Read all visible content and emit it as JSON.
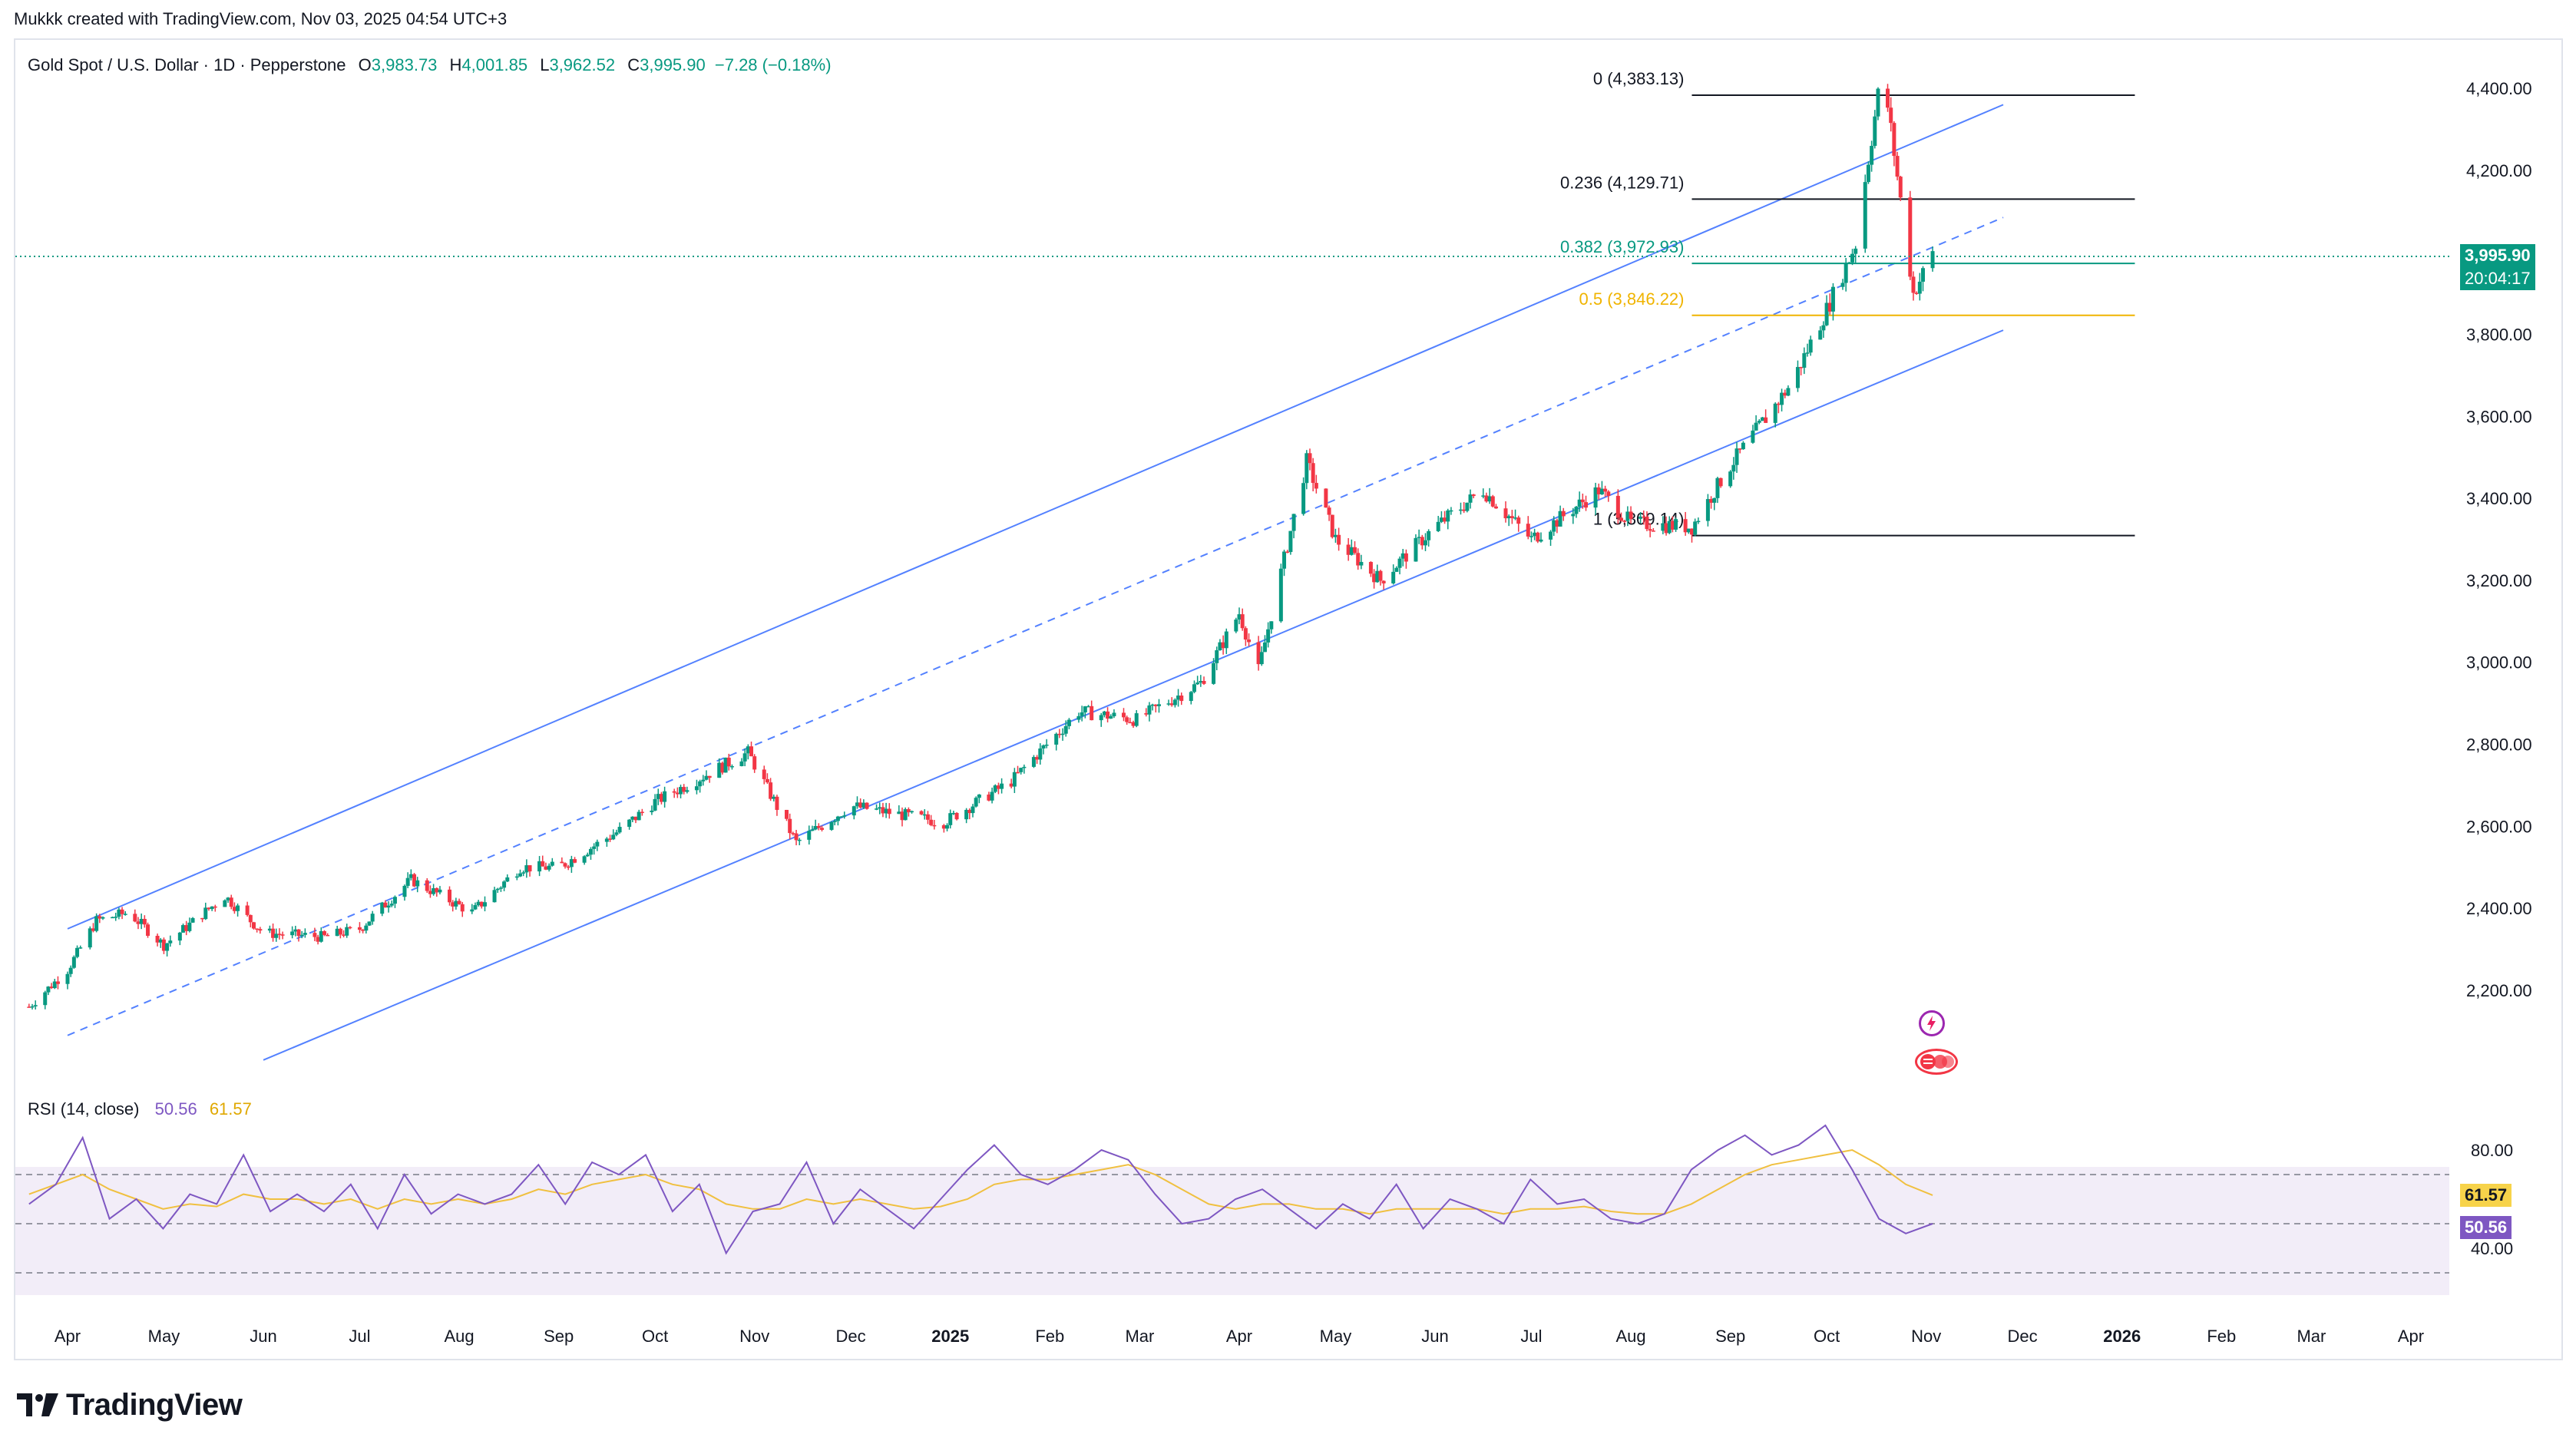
{
  "header": {
    "credit": "Mukkk created with TradingView.com, Nov 03, 2025 04:54 UTC+3"
  },
  "symbol": {
    "name": "Gold Spot / U.S. Dollar · 1D · Pepperstone",
    "open_label": "O",
    "open": "3,983.73",
    "high_label": "H",
    "high": "4,001.85",
    "low_label": "L",
    "low": "3,962.52",
    "close_label": "C",
    "close": "3,995.90",
    "change": "−7.28 (−0.18%)"
  },
  "price_tag": {
    "price": "3,995.90",
    "countdown": "20:04:17",
    "color": "#089981"
  },
  "rsi": {
    "title": "RSI (14, close)",
    "value": "50.56",
    "ma_value": "61.57",
    "tag_rsi": "50.56",
    "tag_ma": "61.57",
    "rsi_color": "#7e57c2",
    "ma_color": "#f0c040"
  },
  "fib_labels": [
    {
      "text": "0 (4,383.13)",
      "level": 4383.13,
      "color": "#131722"
    },
    {
      "text": "0.236 (4,129.71)",
      "level": 4129.71,
      "color": "#131722"
    },
    {
      "text": "0.382 (3,972.93)",
      "level": 3972.93,
      "color": "#089981"
    },
    {
      "text": "0.5 (3,846.22)",
      "level": 3846.22,
      "color": "#f0b400"
    },
    {
      "text": "1 (3,309.14)",
      "level": 3309.14,
      "color": "#131722"
    }
  ],
  "logo": {
    "text": "TradingView"
  },
  "chart_data": {
    "type": "line",
    "title": "Gold Spot / U.S. Dollar · 1D · Pepperstone",
    "y_ticks": [
      "4,400.00",
      "4,200.00",
      "4,000.00",
      "3,800.00",
      "3,600.00",
      "3,400.00",
      "3,200.00",
      "3,000.00",
      "2,800.00",
      "2,600.00",
      "2,400.00",
      "2,200.00"
    ],
    "y_tick_values": [
      4400,
      4200,
      4000,
      3800,
      3600,
      3400,
      3200,
      3000,
      2800,
      2600,
      2400,
      2200
    ],
    "ylim": [
      2050,
      4450
    ],
    "x_ticks": [
      "Apr",
      "May",
      "Jun",
      "Jul",
      "Aug",
      "Sep",
      "Oct",
      "Nov",
      "Dec",
      "2025",
      "Feb",
      "Mar",
      "Apr",
      "May",
      "Jun",
      "Jul",
      "Aug",
      "Sep",
      "Oct",
      "Nov",
      "Dec",
      "2026",
      "Feb",
      "Mar",
      "Apr"
    ],
    "x_tick_dates": [
      "2024-04-01",
      "2024-05-01",
      "2024-06-01",
      "2024-07-01",
      "2024-08-01",
      "2024-09-01",
      "2024-10-01",
      "2024-11-01",
      "2024-12-01",
      "2025-01-01",
      "2025-02-01",
      "2025-03-01",
      "2025-04-01",
      "2025-05-01",
      "2025-06-01",
      "2025-07-01",
      "2025-08-01",
      "2025-09-01",
      "2025-10-01",
      "2025-11-01",
      "2025-12-01",
      "2026-01-01",
      "2026-02-01",
      "2026-03-01",
      "2026-04-01"
    ],
    "series": [
      {
        "values_date": [
          "2024-03-20",
          "2024-04-01",
          "2024-04-10",
          "2024-04-20",
          "2024-05-01",
          "2024-05-20",
          "2024-06-01",
          "2024-06-20",
          "2024-07-01",
          "2024-07-17",
          "2024-08-05",
          "2024-08-20",
          "2024-09-01",
          "2024-09-20",
          "2024-10-01",
          "2024-10-30",
          "2024-11-14",
          "2024-12-01",
          "2024-12-30",
          "2025-01-20",
          "2025-02-10",
          "2025-02-28",
          "2025-03-20",
          "2025-04-01",
          "2025-04-07",
          "2025-04-22",
          "2025-05-01",
          "2025-05-15",
          "2025-06-01",
          "2025-06-16",
          "2025-07-01",
          "2025-07-22",
          "2025-08-01",
          "2025-08-20",
          "2025-09-01",
          "2025-09-20",
          "2025-10-01",
          "2025-10-10",
          "2025-10-17",
          "2025-10-20",
          "2025-10-28",
          "2025-11-03"
        ],
        "values": [
          2160,
          2250,
          2370,
          2390,
          2310,
          2430,
          2340,
          2330,
          2350,
          2470,
          2390,
          2500,
          2500,
          2590,
          2660,
          2780,
          2560,
          2650,
          2610,
          2710,
          2880,
          2860,
          2950,
          3120,
          2980,
          3490,
          3300,
          3200,
          3330,
          3420,
          3300,
          3420,
          3340,
          3330,
          3480,
          3680,
          3860,
          4020,
          4383,
          4356,
          3900,
          3996
        ]
      }
    ],
    "channel": {
      "upper": [
        [
          "2024-04-01",
          2350
        ],
        [
          "2025-11-25",
          4360
        ]
      ],
      "lower": [
        [
          "2024-06-01",
          2030
        ],
        [
          "2025-11-25",
          3810
        ]
      ],
      "middle": [
        [
          "2024-04-01",
          2090
        ],
        [
          "2025-11-25",
          4085
        ]
      ]
    },
    "rsi_series": [
      58,
      66,
      85,
      52,
      60,
      48,
      62,
      58,
      78,
      55,
      62,
      55,
      66,
      48,
      70,
      54,
      62,
      58,
      62,
      74,
      58,
      75,
      70,
      78,
      55,
      66,
      38,
      55,
      58,
      75,
      50,
      64,
      56,
      48,
      60,
      72,
      82,
      70,
      66,
      72,
      80,
      76,
      62,
      50,
      52,
      60,
      64,
      56,
      48,
      58,
      52,
      66,
      48,
      60,
      56,
      50,
      68,
      58,
      60,
      52,
      50,
      54,
      72,
      80,
      86,
      78,
      82,
      90,
      72,
      52,
      46,
      50
    ],
    "rsi_ma_series": [
      62,
      66,
      70,
      64,
      60,
      56,
      58,
      57,
      62,
      60,
      60,
      58,
      60,
      56,
      60,
      58,
      60,
      58,
      60,
      64,
      62,
      66,
      68,
      70,
      66,
      64,
      58,
      56,
      56,
      60,
      58,
      60,
      58,
      56,
      57,
      60,
      66,
      68,
      68,
      70,
      72,
      74,
      70,
      64,
      58,
      56,
      58,
      58,
      56,
      56,
      54,
      56,
      56,
      56,
      56,
      54,
      56,
      56,
      57,
      55,
      54,
      54,
      58,
      64,
      70,
      74,
      76,
      78,
      80,
      74,
      66,
      61.57
    ],
    "rsi_ylim": [
      20,
      95
    ],
    "rsi_levels": [
      70,
      50,
      30
    ],
    "rsi_ticks": [
      "80.00",
      "40.00"
    ],
    "rsi_tick_values": [
      80,
      40
    ]
  }
}
